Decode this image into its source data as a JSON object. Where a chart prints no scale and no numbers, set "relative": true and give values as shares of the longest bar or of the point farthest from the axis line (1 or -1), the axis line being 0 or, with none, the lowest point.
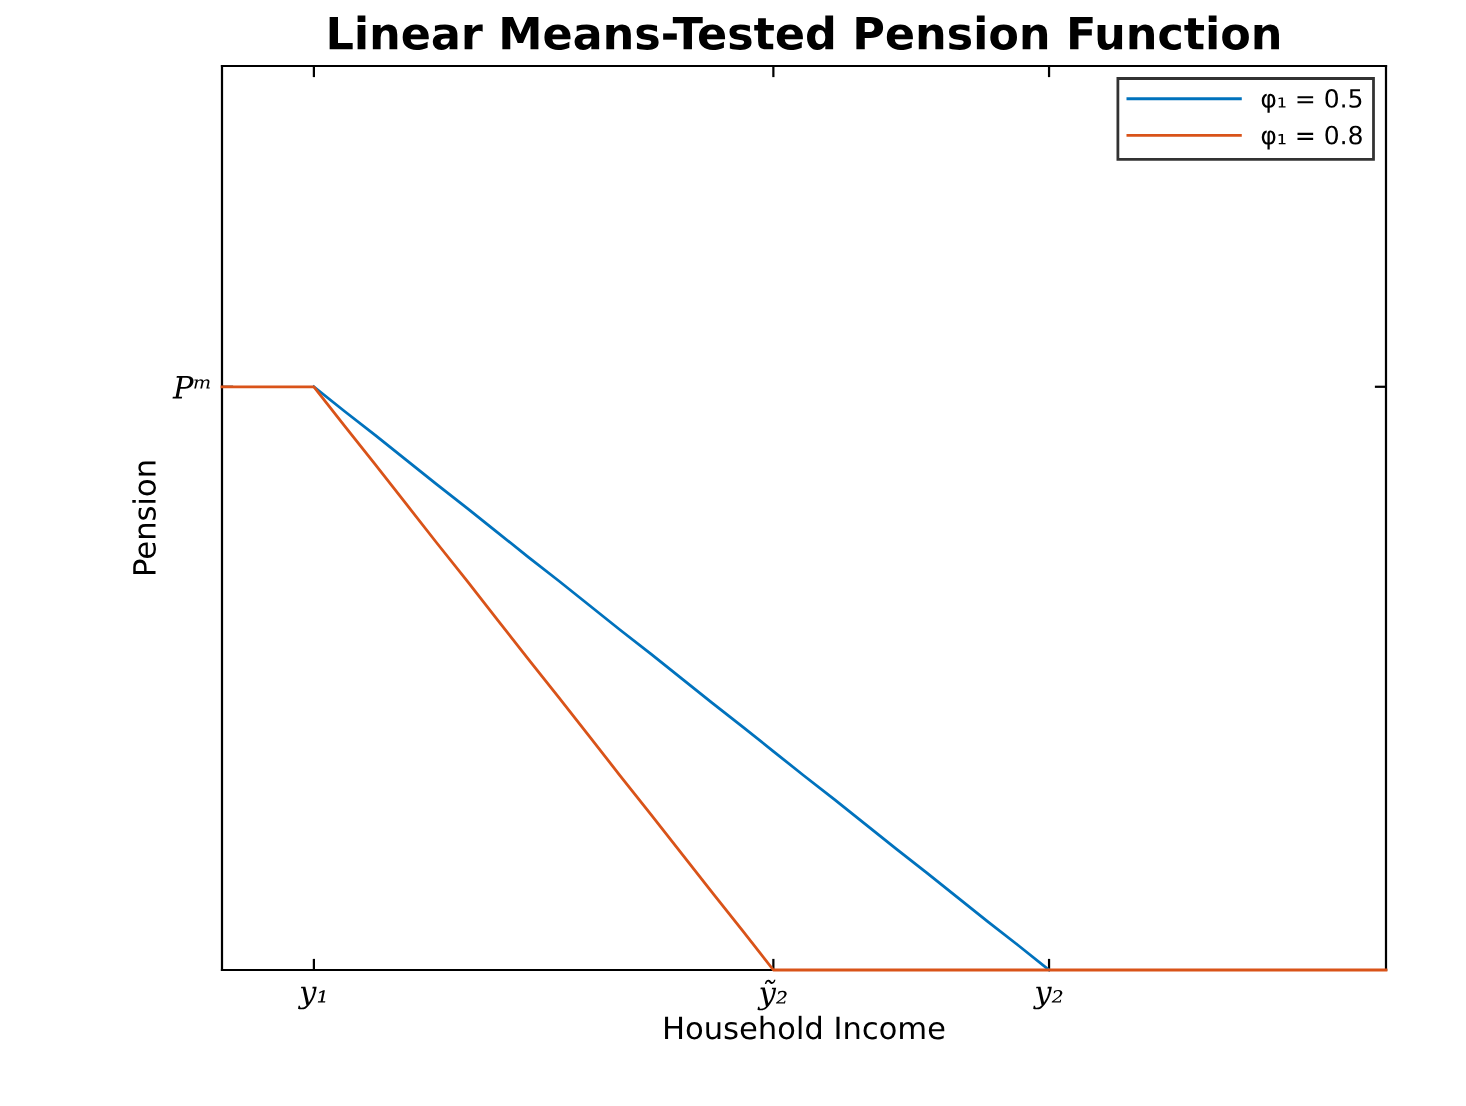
{
  "chart_data": {
    "type": "line",
    "title": "Linear Means-Tested Pension Function",
    "xlabel": "Household Income",
    "ylabel": "Pension",
    "relative": true,
    "annotations": [
      "Pᵐ"
    ],
    "categories": [
      null,
      null,
      null,
      "y₁",
      null,
      null,
      null,
      null,
      null,
      null,
      null,
      null,
      null,
      null,
      null,
      null,
      null,
      null,
      "ỹ₂",
      null,
      null,
      null,
      null,
      null,
      null,
      null,
      null,
      "y₂",
      null,
      null,
      null,
      null,
      null,
      null,
      null,
      null,
      null,
      null,
      null
    ],
    "series": [
      {
        "name": "φ₁ = 0.5",
        "color": "#0072bd",
        "values": [
          null,
          null,
          null,
          1,
          0.958,
          0.917,
          0.875,
          0.833,
          0.792,
          0.75,
          0.708,
          0.667,
          0.625,
          0.583,
          0.542,
          0.5,
          0.458,
          0.417,
          0.375,
          0.333,
          0.292,
          0.25,
          0.208,
          0.167,
          0.125,
          0.083,
          0.042,
          0,
          null,
          null,
          null,
          null,
          null,
          null,
          null,
          null,
          null,
          null,
          null
        ]
      },
      {
        "name": "φ₁ = 0.8",
        "color": "#d95319",
        "values": [
          1,
          1,
          1,
          1,
          0.933,
          0.867,
          0.8,
          0.733,
          0.667,
          0.6,
          0.533,
          0.467,
          0.4,
          0.333,
          0.267,
          0.2,
          0.133,
          0.067,
          0,
          0,
          0,
          0,
          0,
          0,
          0,
          0,
          0,
          0,
          0,
          0,
          0,
          0,
          0,
          0,
          0,
          0,
          0,
          0,
          0
        ]
      }
    ],
    "legend": "top right",
    "grid": false,
    "marker": "none",
    "line_style": "solid"
  }
}
